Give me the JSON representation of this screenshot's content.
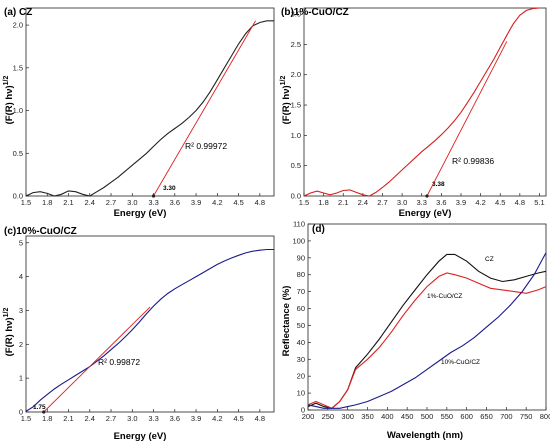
{
  "chart_data": [
    {
      "type": "line",
      "title": "(a) CZ",
      "xlabel": "Energy (eV)",
      "ylabel": "(F(R) hν)1/2",
      "xlim": [
        1.5,
        5.0
      ],
      "ylim": [
        0,
        2.2
      ],
      "xticks": [
        "1.5",
        "1.8",
        "2.1",
        "2.4",
        "2.7",
        "3.0",
        "3.3",
        "3.6",
        "3.9",
        "4.2",
        "4.5",
        "4.8"
      ],
      "yticks": [
        "0.0",
        "0.5",
        "1.0",
        "1.5",
        "2.0"
      ],
      "series": [
        {
          "color": "#222222",
          "x": [
            1.5,
            1.6,
            1.7,
            1.8,
            1.9,
            2.0,
            2.1,
            2.2,
            2.3,
            2.4,
            2.5,
            2.6,
            2.7,
            2.8,
            2.9,
            3.0,
            3.1,
            3.2,
            3.3,
            3.4,
            3.5,
            3.6,
            3.7,
            3.8,
            3.9,
            4.0,
            4.1,
            4.2,
            4.3,
            4.4,
            4.5,
            4.6,
            4.7,
            4.8,
            4.9,
            5.0
          ],
          "y": [
            0.0,
            0.04,
            0.05,
            0.03,
            0.0,
            0.02,
            0.06,
            0.05,
            0.02,
            0.0,
            0.05,
            0.1,
            0.16,
            0.22,
            0.29,
            0.36,
            0.43,
            0.5,
            0.58,
            0.66,
            0.73,
            0.79,
            0.85,
            0.92,
            1.0,
            1.1,
            1.22,
            1.36,
            1.5,
            1.64,
            1.78,
            1.9,
            1.99,
            2.03,
            2.05,
            2.05
          ]
        },
        {
          "color": "#e02020",
          "x": [
            3.3,
            4.74
          ],
          "y": [
            0.0,
            2.05
          ]
        }
      ],
      "annotations": {
        "r2": "R² 0.99972",
        "intercept": "3.30"
      }
    },
    {
      "type": "line",
      "title": "(b)1%-CuO/CZ",
      "xlabel": "Energy (eV)",
      "ylabel": "(F(R) hν)1/2",
      "xlim": [
        1.5,
        5.2
      ],
      "ylim": [
        0,
        3.1
      ],
      "xticks": [
        "1.5",
        "1.8",
        "2.1",
        "2.4",
        "2.7",
        "3.0",
        "3.3",
        "3.6",
        "3.9",
        "4.2",
        "4.5",
        "4.8",
        "5.1"
      ],
      "yticks": [
        "0.0",
        "0.5",
        "1.0",
        "1.5",
        "2.0",
        "2.5",
        "3.0"
      ],
      "series": [
        {
          "color": "#d42020",
          "x": [
            1.5,
            1.6,
            1.7,
            1.8,
            1.9,
            2.0,
            2.1,
            2.2,
            2.3,
            2.4,
            2.5,
            2.6,
            2.7,
            2.8,
            2.9,
            3.0,
            3.1,
            3.2,
            3.3,
            3.4,
            3.5,
            3.6,
            3.7,
            3.8,
            3.9,
            4.0,
            4.1,
            4.2,
            4.3,
            4.4,
            4.5,
            4.6,
            4.7,
            4.8,
            4.9,
            5.0,
            5.1
          ],
          "y": [
            0.0,
            0.05,
            0.08,
            0.05,
            0.02,
            0.05,
            0.09,
            0.1,
            0.06,
            0.02,
            0.0,
            0.06,
            0.14,
            0.23,
            0.33,
            0.43,
            0.53,
            0.63,
            0.73,
            0.82,
            0.91,
            1.01,
            1.12,
            1.24,
            1.38,
            1.54,
            1.71,
            1.89,
            2.07,
            2.25,
            2.45,
            2.65,
            2.84,
            2.98,
            3.06,
            3.09,
            3.1
          ]
        },
        {
          "color": "#e02020",
          "x": [
            3.38,
            4.6
          ],
          "y": [
            0.0,
            2.55
          ]
        }
      ],
      "annotations": {
        "r2": "R² 0.99836",
        "intercept": "3.38"
      }
    },
    {
      "type": "line",
      "title": "(c)10%-CuO/CZ",
      "xlabel": "Energy (eV)",
      "ylabel": "(F(R) hν)1/2",
      "xlim": [
        1.5,
        5.0
      ],
      "ylim": [
        0,
        5.2
      ],
      "xticks": [
        "1.5",
        "1.8",
        "2.1",
        "2.4",
        "2.7",
        "3.0",
        "3.3",
        "3.6",
        "3.9",
        "4.2",
        "4.5",
        "4.8"
      ],
      "yticks": [
        "0",
        "1",
        "2",
        "3",
        "4",
        "5"
      ],
      "series": [
        {
          "color": "#1a1a8c",
          "x": [
            1.5,
            1.6,
            1.7,
            1.8,
            1.9,
            2.0,
            2.1,
            2.2,
            2.3,
            2.4,
            2.5,
            2.6,
            2.7,
            2.8,
            2.9,
            3.0,
            3.1,
            3.2,
            3.3,
            3.4,
            3.5,
            3.6,
            3.7,
            3.8,
            3.9,
            4.0,
            4.1,
            4.2,
            4.3,
            4.4,
            4.5,
            4.6,
            4.7,
            4.8,
            4.9,
            5.0
          ],
          "y": [
            0.02,
            0.15,
            0.35,
            0.52,
            0.68,
            0.82,
            0.95,
            1.08,
            1.21,
            1.34,
            1.5,
            1.66,
            1.84,
            2.02,
            2.22,
            2.43,
            2.66,
            2.9,
            3.13,
            3.33,
            3.5,
            3.64,
            3.76,
            3.88,
            4.0,
            4.12,
            4.24,
            4.36,
            4.46,
            4.55,
            4.63,
            4.7,
            4.75,
            4.78,
            4.8,
            4.8
          ]
        },
        {
          "color": "#e02020",
          "x": [
            1.75,
            3.25
          ],
          "y": [
            0.0,
            3.1
          ]
        }
      ],
      "annotations": {
        "r2": "R² 0.99872",
        "intercept": "1.75"
      }
    },
    {
      "type": "line",
      "title": "(d)",
      "xlabel": "Wavelength (nm)",
      "ylabel": "Reflectance (%)",
      "xlim": [
        200,
        800
      ],
      "ylim": [
        0,
        110
      ],
      "xticks": [
        "200",
        "250",
        "300",
        "350",
        "400",
        "450",
        "500",
        "550",
        "600",
        "650",
        "700",
        "750",
        "800"
      ],
      "yticks": [
        "0",
        "10",
        "20",
        "30",
        "40",
        "50",
        "60",
        "70",
        "80",
        "90",
        "100",
        "110"
      ],
      "series": [
        {
          "name": "CZ",
          "color": "#111111",
          "x": [
            200,
            220,
            240,
            260,
            280,
            300,
            320,
            350,
            380,
            410,
            440,
            470,
            500,
            530,
            550,
            570,
            600,
            630,
            660,
            690,
            720,
            750,
            780,
            800
          ],
          "y": [
            2,
            4,
            2,
            1,
            5,
            12,
            25,
            33,
            42,
            52,
            62,
            71,
            80,
            88,
            92,
            92,
            88,
            82,
            78,
            76,
            77,
            79,
            81,
            82
          ]
        },
        {
          "name": "1%-CuO/CZ",
          "color": "#e02020",
          "x": [
            200,
            220,
            240,
            260,
            280,
            300,
            320,
            350,
            380,
            410,
            440,
            470,
            500,
            530,
            550,
            570,
            600,
            630,
            660,
            690,
            720,
            750,
            780,
            800
          ],
          "y": [
            3,
            5,
            3,
            1,
            5,
            12,
            24,
            30,
            37,
            46,
            56,
            65,
            73,
            79,
            81,
            80,
            78,
            75,
            72,
            71,
            70,
            69,
            71,
            73
          ]
        },
        {
          "name": "10%-CuO/CZ",
          "color": "#1a1a8c",
          "x": [
            200,
            220,
            240,
            260,
            280,
            300,
            320,
            350,
            380,
            410,
            440,
            470,
            500,
            530,
            560,
            590,
            620,
            650,
            680,
            710,
            740,
            770,
            800
          ],
          "y": [
            3,
            2,
            1,
            1,
            1,
            2,
            3,
            5,
            8,
            11,
            15,
            19,
            24,
            29,
            34,
            38,
            43,
            49,
            55,
            62,
            70,
            80,
            93
          ]
        }
      ],
      "legend_labels": [
        "CZ",
        "1%-CuO/CZ",
        "10%-CuO/CZ"
      ]
    }
  ]
}
